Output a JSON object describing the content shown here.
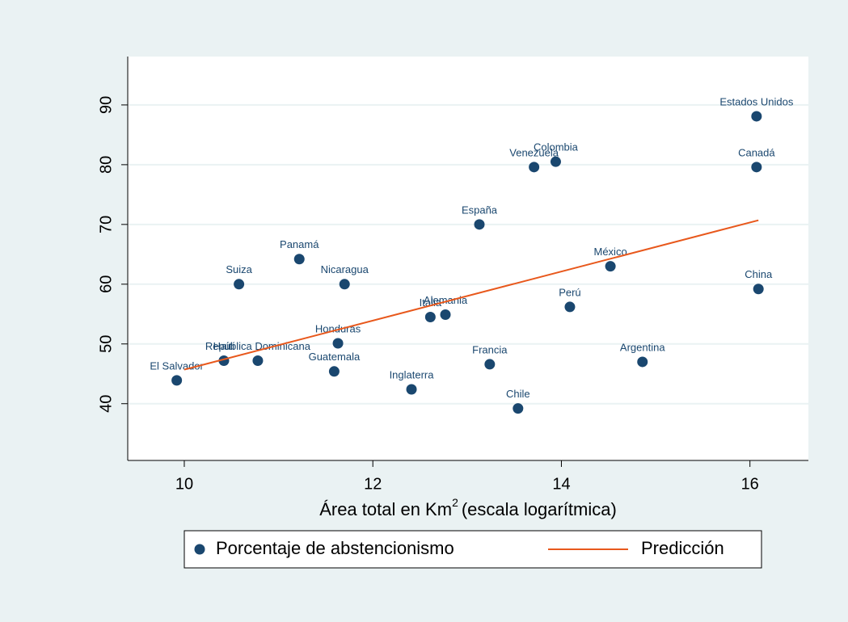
{
  "chart_data": {
    "type": "scatter",
    "xlabel": {
      "text": "Área total en Km",
      "sup": "2",
      "rest": "(escala logarítmica)"
    },
    "xlim": [
      9.4,
      16.62
    ],
    "ylim": [
      30.5,
      98.1
    ],
    "xticks": [
      10,
      12,
      14,
      16
    ],
    "yticks": [
      40,
      50,
      60,
      70,
      80,
      90
    ],
    "grid": true,
    "series": [
      {
        "name": "Porcentaje de abstencionismo",
        "color": "#1a476f",
        "mode": "markers",
        "labels": [
          "El Salvador",
          "Haití",
          "República Dominicana",
          "Suiza",
          "Panamá",
          "Nicaragua",
          "Honduras",
          "Guatemala",
          "Inglaterra",
          "Italia",
          "Alemania",
          "España",
          "Francia",
          "Chile",
          "Venezuela",
          "Colombia",
          "Perú",
          "México",
          "Argentina",
          "Estados Unidos",
          "Canadá",
          "China"
        ],
        "x": [
          9.92,
          10.42,
          10.78,
          10.58,
          11.22,
          11.7,
          11.63,
          11.59,
          12.41,
          12.61,
          12.77,
          13.13,
          13.24,
          13.54,
          13.71,
          13.94,
          14.09,
          14.52,
          14.86,
          16.07,
          16.07,
          16.09
        ],
        "values": [
          43.9,
          47.2,
          47.2,
          60.0,
          64.2,
          60.0,
          50.1,
          45.4,
          42.4,
          54.5,
          54.9,
          70.0,
          46.6,
          39.2,
          79.6,
          80.5,
          56.2,
          63.0,
          47.0,
          88.1,
          79.6,
          59.2
        ]
      },
      {
        "name": "Predicción",
        "color": "#e8581c",
        "mode": "line",
        "x": [
          10,
          16.09
        ],
        "values": [
          45.7,
          70.7
        ]
      }
    ]
  }
}
